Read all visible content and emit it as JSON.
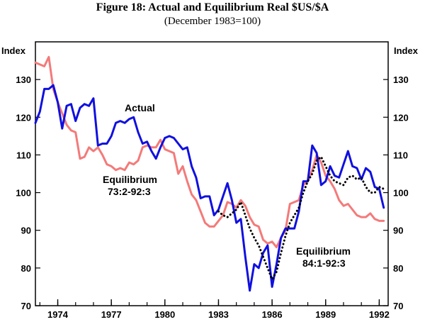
{
  "chart_data": {
    "type": "line",
    "title": "Figure 18: Actual and Equilibrium Real $US/$A",
    "subtitle": "(December 1983=100)",
    "ylabel_left": "Index",
    "ylabel_right": "Index",
    "ylim": [
      70,
      140
    ],
    "yticks": [
      70,
      80,
      90,
      100,
      110,
      120,
      130
    ],
    "xlim": [
      1972.75,
      1992.5
    ],
    "xticks": [
      1974,
      1977,
      1980,
      1983,
      1986,
      1989,
      1992
    ],
    "xtick_labels": [
      "1974",
      "1977",
      "1980",
      "1983",
      "1986",
      "1989",
      "1992"
    ],
    "grid": false,
    "annotations": {
      "actual": "Actual",
      "eq1_line1": "Equilibrium",
      "eq1_line2": "73:2-92:3",
      "eq2_line1": "Equilibrium",
      "eq2_line2": "84:1-92:3"
    },
    "series": [
      {
        "name": "Actual",
        "color": "#1010e0",
        "style": "solid",
        "x": [
          1972.75,
          1973.0,
          1973.25,
          1973.5,
          1973.75,
          1974.0,
          1974.25,
          1974.5,
          1974.75,
          1975.0,
          1975.25,
          1975.5,
          1975.75,
          1976.0,
          1976.25,
          1976.5,
          1976.75,
          1977.0,
          1977.25,
          1977.5,
          1977.75,
          1978.0,
          1978.25,
          1978.5,
          1978.75,
          1979.0,
          1979.25,
          1979.5,
          1979.75,
          1980.0,
          1980.25,
          1980.5,
          1980.75,
          1981.0,
          1981.25,
          1981.5,
          1981.75,
          1982.0,
          1982.25,
          1982.5,
          1982.75,
          1983.0,
          1983.25,
          1983.5,
          1983.75,
          1984.0,
          1984.25,
          1984.5,
          1984.75,
          1985.0,
          1985.25,
          1985.5,
          1985.75,
          1986.0,
          1986.25,
          1986.5,
          1986.75,
          1987.0,
          1987.25,
          1987.5,
          1987.75,
          1988.0,
          1988.25,
          1988.5,
          1988.75,
          1989.0,
          1989.25,
          1989.5,
          1989.75,
          1990.0,
          1990.25,
          1990.5,
          1990.75,
          1991.0,
          1991.25,
          1991.5,
          1991.75,
          1992.0,
          1992.25
        ],
        "values": [
          118.5,
          121.5,
          127.5,
          127.5,
          128.5,
          124,
          117,
          123,
          123.5,
          119,
          122.5,
          123.5,
          123,
          125,
          112.5,
          113,
          113,
          115,
          118.5,
          119,
          118.5,
          119.5,
          120,
          116,
          113,
          113.5,
          111,
          109,
          112,
          114.5,
          115,
          114.5,
          113,
          111.5,
          112,
          107,
          104,
          98.5,
          99,
          99,
          94,
          95.5,
          99,
          102.5,
          98,
          92,
          93,
          83,
          74,
          81,
          80,
          84,
          86,
          75,
          81,
          88,
          90.5,
          90.5,
          90.5,
          95,
          103,
          103,
          112.5,
          110.5,
          102,
          103,
          107,
          104.5,
          104,
          107.5,
          111,
          107,
          106.5,
          103.5,
          106.5,
          105.5,
          101.5,
          101,
          96
        ]
      },
      {
        "name": "Equilibrium 73:2-92:3",
        "color": "#f47a7a",
        "style": "solid",
        "x": [
          1972.75,
          1973.0,
          1973.25,
          1973.5,
          1973.75,
          1974.0,
          1974.25,
          1974.5,
          1974.75,
          1975.0,
          1975.25,
          1975.5,
          1975.75,
          1976.0,
          1976.25,
          1976.5,
          1976.75,
          1977.0,
          1977.25,
          1977.5,
          1977.75,
          1978.0,
          1978.25,
          1978.5,
          1978.75,
          1979.0,
          1979.25,
          1979.5,
          1979.75,
          1980.0,
          1980.25,
          1980.5,
          1980.75,
          1981.0,
          1981.25,
          1981.5,
          1981.75,
          1982.0,
          1982.25,
          1982.5,
          1982.75,
          1983.0,
          1983.25,
          1983.5,
          1983.75,
          1984.0,
          1984.25,
          1984.5,
          1984.75,
          1985.0,
          1985.25,
          1985.5,
          1985.75,
          1986.0,
          1986.25,
          1986.5,
          1986.75,
          1987.0,
          1987.25,
          1987.5,
          1987.75,
          1988.0,
          1988.25,
          1988.5,
          1988.75,
          1989.0,
          1989.25,
          1989.5,
          1989.75,
          1990.0,
          1990.25,
          1990.5,
          1990.75,
          1991.0,
          1991.25,
          1991.5,
          1991.75,
          1992.0,
          1992.25
        ],
        "values": [
          134.5,
          134,
          133.5,
          136,
          127.5,
          124,
          121,
          118,
          116.5,
          116,
          109,
          109.5,
          112,
          111,
          112,
          110,
          107.5,
          107,
          106,
          106.5,
          106,
          108,
          107.5,
          108.5,
          112,
          112.5,
          112,
          112,
          114,
          111.5,
          111,
          110.5,
          105,
          107,
          103,
          99.5,
          98,
          95,
          92,
          91,
          91,
          92.5,
          94,
          97.5,
          97,
          96,
          98,
          96.5,
          93.5,
          91.5,
          91,
          87.5,
          86.5,
          87,
          85.5,
          88,
          90,
          97,
          97.5,
          98,
          102,
          103,
          106,
          110,
          108,
          104.5,
          103,
          101,
          98,
          96.5,
          97,
          95.5,
          94,
          93.5,
          93.5,
          94.5,
          93,
          92.5,
          92.5
        ]
      },
      {
        "name": "Equilibrium 84:1-92:3",
        "color": "#000000",
        "style": "dotted",
        "x": [
          1983.0,
          1983.25,
          1983.5,
          1983.75,
          1984.0,
          1984.25,
          1984.5,
          1984.75,
          1985.0,
          1985.25,
          1985.5,
          1985.75,
          1986.0,
          1986.25,
          1986.5,
          1986.75,
          1987.0,
          1987.25,
          1987.5,
          1987.75,
          1988.0,
          1988.25,
          1988.5,
          1988.75,
          1989.0,
          1989.25,
          1989.5,
          1989.75,
          1990.0,
          1990.25,
          1990.5,
          1990.75,
          1991.0,
          1991.25,
          1991.5,
          1991.75,
          1992.0,
          1992.25
        ],
        "values": [
          95,
          94,
          93.5,
          94.5,
          95.5,
          97.5,
          94,
          90.5,
          88,
          86,
          83,
          80,
          77,
          79,
          84,
          88.5,
          92,
          94,
          96,
          100,
          103,
          105,
          108.5,
          109.5,
          107,
          104.5,
          103,
          102.5,
          102,
          104,
          104.5,
          103.5,
          104,
          101.5,
          100,
          100,
          101.5,
          101
        ]
      }
    ]
  }
}
